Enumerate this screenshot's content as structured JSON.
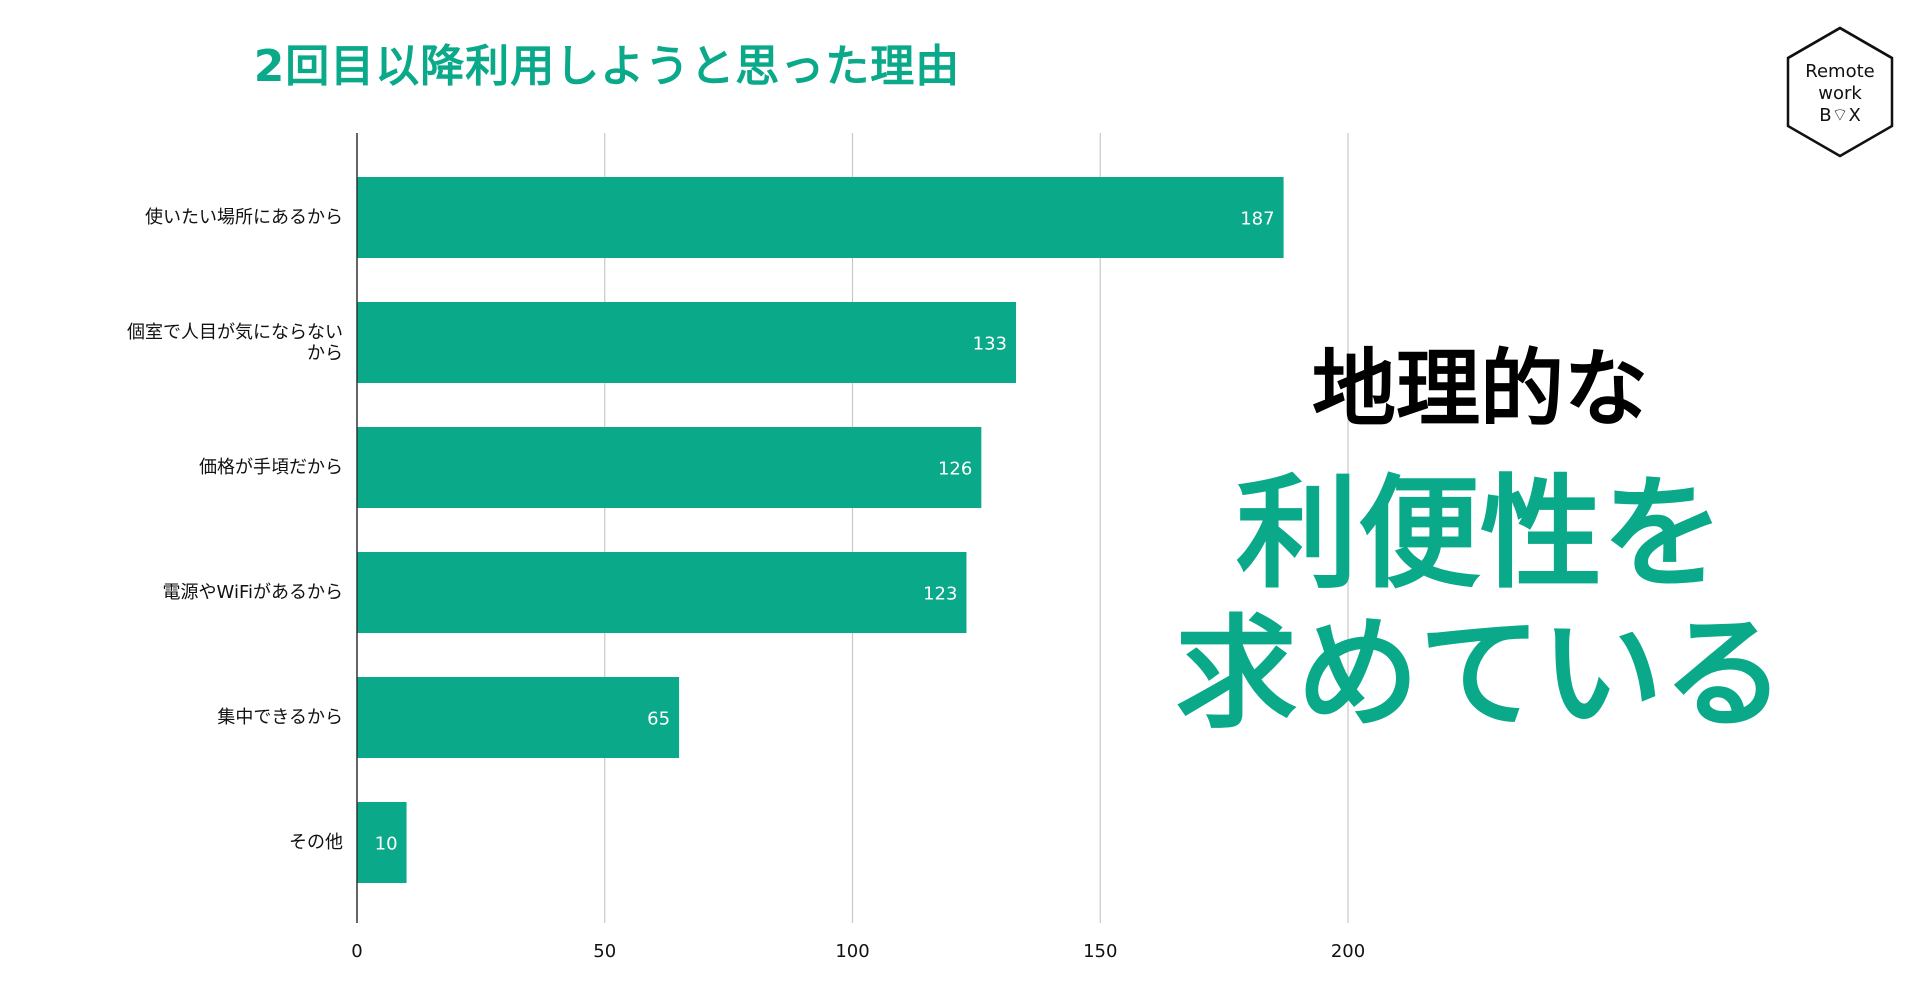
{
  "chart_data": {
    "type": "bar",
    "orientation": "horizontal",
    "title": "2回目以降利用しようと思った理由",
    "categories": [
      [
        "使いたい場所にあるから"
      ],
      [
        "個室で人目が気にならない",
        "から"
      ],
      [
        "価格が手頃だから"
      ],
      [
        "電源やWiFiがあるから"
      ],
      [
        "集中できるから"
      ],
      [
        "その他"
      ]
    ],
    "values": [
      187,
      133,
      126,
      123,
      65,
      10
    ],
    "value_labels": [
      "187",
      "133",
      "126",
      "123",
      "65",
      "10"
    ],
    "x_ticks": [
      0,
      50,
      100,
      150,
      200
    ],
    "tick_labels": [
      "0",
      "50",
      "100",
      "150",
      "200"
    ],
    "xlim": [
      0,
      200
    ],
    "grid": true,
    "bar_color": "#0aa98a",
    "data_label_color": "#ffffff",
    "grid_color": "#c8c8c8"
  },
  "headline": {
    "line1": "地理的な",
    "line2": "利便性を",
    "line3": "求めている"
  },
  "logo": {
    "line1": "Remote",
    "line2": "work",
    "line3": "B⌔X",
    "icon": "hexagon-house-logo"
  },
  "colors": {
    "accent": "#0aa98a",
    "text": "#111111"
  }
}
